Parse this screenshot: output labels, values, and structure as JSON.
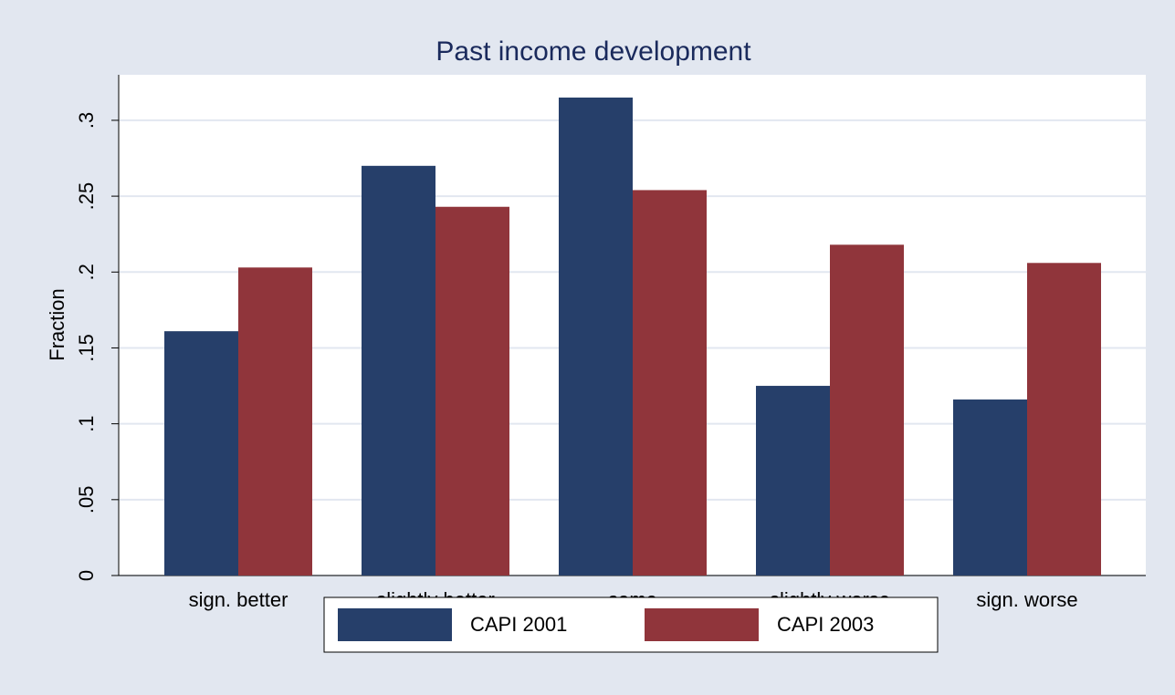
{
  "chart_data": {
    "type": "bar",
    "title": "Past income development",
    "y_label": "Fraction",
    "categories": [
      "sign. better",
      "slightly better",
      "same",
      "slightly worse",
      "sign. worse"
    ],
    "series": [
      {
        "name": "CAPI 2001",
        "color": "#263f6a",
        "values": [
          0.161,
          0.27,
          0.315,
          0.125,
          0.116
        ]
      },
      {
        "name": "CAPI 2003",
        "color": "#90353b",
        "values": [
          0.203,
          0.243,
          0.254,
          0.218,
          0.206
        ]
      }
    ],
    "ylim": [
      0,
      0.33
    ],
    "yticks": [
      0,
      {
        "value": 0.05,
        "label": ".05"
      },
      {
        "value": 0.1,
        "label": ".1"
      },
      {
        "value": 0.15,
        "label": ".15"
      },
      {
        "value": 0.2,
        "label": ".2"
      },
      {
        "value": 0.25,
        "label": ".25"
      },
      {
        "value": 0.3,
        "label": ".3"
      }
    ],
    "grid": true,
    "legend": "bottom"
  }
}
